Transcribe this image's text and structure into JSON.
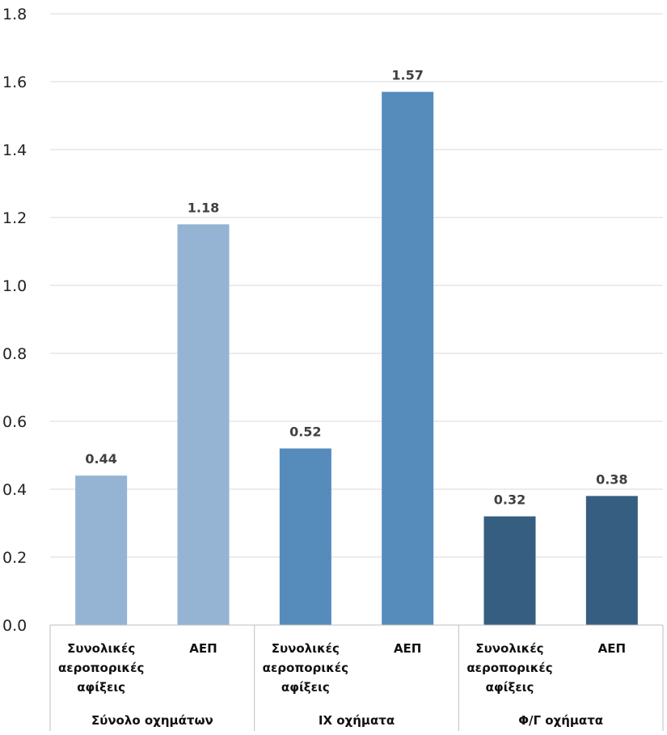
{
  "chart_data": {
    "type": "bar",
    "title": "",
    "xlabel": "",
    "ylabel": "",
    "ylim": [
      0,
      1.8
    ],
    "yticks": [
      "0.0",
      "0.2",
      "0.4",
      "0.6",
      "0.8",
      "1.0",
      "1.2",
      "1.4",
      "1.6",
      "1.8"
    ],
    "grid": true,
    "legend": "none",
    "groups": [
      {
        "label": "Σύνολο οχημάτων",
        "color": "#95B3D3",
        "bars": [
          {
            "category": [
              "Συνολικές",
              "αεροπορικές",
              "αφίξεις"
            ],
            "value": 0.44,
            "value_label": "0.44"
          },
          {
            "category": [
              "ΑΕΠ"
            ],
            "value": 1.18,
            "value_label": "1.18"
          }
        ]
      },
      {
        "label": "ΙΧ οχήματα",
        "color": "#558CBB",
        "bars": [
          {
            "category": [
              "Συνολικές",
              "αεροπορικές",
              "αφίξεις"
            ],
            "value": 0.52,
            "value_label": "0.52"
          },
          {
            "category": [
              "ΑΕΠ"
            ],
            "value": 1.57,
            "value_label": "1.57"
          }
        ]
      },
      {
        "label": "Φ/Γ οχήματα",
        "color": "#365E80",
        "bars": [
          {
            "category": [
              "Συνολικές",
              "αεροπορικές",
              "αφίξεις"
            ],
            "value": 0.32,
            "value_label": "0.32"
          },
          {
            "category": [
              "ΑΕΠ"
            ],
            "value": 0.38,
            "value_label": "0.38"
          }
        ]
      }
    ],
    "gridline_color": "#D9D9D9",
    "axis_color": "#BFBFBF"
  }
}
